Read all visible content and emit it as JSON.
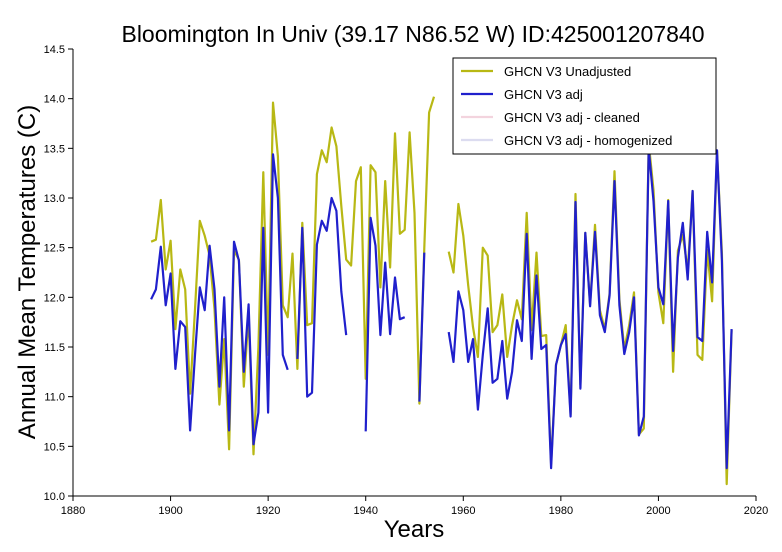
{
  "chart_data": {
    "type": "line",
    "title": "Bloomington In Univ (39.17 N86.52 W) ID:425001207840",
    "xlabel": "Years",
    "ylabel": "Annual Mean Temperatures (C)",
    "xlim": [
      1880,
      2020
    ],
    "ylim": [
      10.0,
      14.5
    ],
    "x_ticks": [
      "1880",
      "1900",
      "1920",
      "1940",
      "1960",
      "1980",
      "2000",
      "2020"
    ],
    "y_ticks": [
      "10.0",
      "10.5",
      "11.0",
      "11.5",
      "12.0",
      "12.5",
      "13.0",
      "13.5",
      "14.0",
      "14.5"
    ],
    "legend_position": "top-right",
    "grid": false,
    "series": [
      {
        "name": "GHCN V3 Unadjusted",
        "color": "#b8b814",
        "points": [
          [
            1896,
            12.56
          ],
          [
            1897,
            12.58
          ],
          [
            1898,
            12.98
          ],
          [
            1899,
            12.28
          ],
          [
            1900,
            12.57
          ],
          [
            1901,
            11.68
          ],
          [
            1902,
            12.28
          ],
          [
            1903,
            12.08
          ],
          [
            1904,
            11.03
          ],
          [
            1905,
            11.88
          ],
          [
            1906,
            12.77
          ],
          [
            1907,
            12.62
          ],
          [
            1908,
            12.42
          ],
          [
            1909,
            11.88
          ],
          [
            1910,
            10.92
          ],
          [
            1911,
            11.58
          ],
          [
            1912,
            10.47
          ],
          [
            1913,
            12.47
          ],
          [
            1914,
            12.38
          ],
          [
            1915,
            11.1
          ],
          [
            1916,
            11.82
          ],
          [
            1917,
            10.42
          ],
          [
            1918,
            11.5
          ],
          [
            1919,
            13.26
          ],
          [
            1920,
            11.42
          ],
          [
            1921,
            13.96
          ],
          [
            1922,
            13.42
          ],
          [
            1923,
            11.92
          ],
          [
            1924,
            11.8
          ],
          [
            1925,
            12.44
          ],
          [
            1926,
            11.28
          ],
          [
            1927,
            12.75
          ],
          [
            1928,
            11.72
          ],
          [
            1929,
            11.74
          ],
          [
            1930,
            13.24
          ],
          [
            1931,
            13.48
          ],
          [
            1932,
            13.36
          ],
          [
            1933,
            13.71
          ],
          [
            1934,
            13.52
          ],
          [
            1935,
            12.92
          ],
          [
            1936,
            12.38
          ],
          [
            1937,
            12.32
          ],
          [
            1938,
            13.17
          ],
          [
            1939,
            13.31
          ],
          [
            1940,
            11.18
          ],
          [
            1941,
            13.33
          ],
          [
            1942,
            13.26
          ],
          [
            1943,
            12.1
          ],
          [
            1944,
            13.17
          ],
          [
            1945,
            12.3
          ],
          [
            1946,
            13.65
          ],
          [
            1947,
            12.64
          ],
          [
            1948,
            12.68
          ],
          [
            1949,
            13.66
          ],
          [
            1950,
            12.85
          ],
          [
            1951,
            10.93
          ],
          [
            1952,
            12.5
          ],
          [
            1953,
            13.86
          ],
          [
            1954,
            14.02
          ],
          null,
          [
            1957,
            12.46
          ],
          [
            1958,
            12.25
          ],
          [
            1959,
            12.94
          ],
          [
            1960,
            12.62
          ],
          [
            1961,
            12.12
          ],
          [
            1962,
            11.7
          ],
          [
            1963,
            11.4
          ],
          [
            1964,
            12.5
          ],
          [
            1965,
            12.42
          ],
          [
            1966,
            11.65
          ],
          [
            1967,
            11.72
          ],
          [
            1968,
            12.03
          ],
          [
            1969,
            11.4
          ],
          [
            1970,
            11.72
          ],
          [
            1971,
            11.97
          ],
          [
            1972,
            11.78
          ],
          [
            1973,
            12.85
          ],
          [
            1974,
            11.67
          ],
          [
            1975,
            12.45
          ],
          [
            1976,
            11.61
          ],
          [
            1977,
            11.62
          ],
          [
            1978,
            10.32
          ],
          [
            1979,
            11.32
          ],
          [
            1980,
            11.52
          ],
          [
            1981,
            11.72
          ],
          [
            1982,
            10.82
          ],
          [
            1983,
            13.04
          ],
          [
            1984,
            11.12
          ],
          [
            1985,
            12.65
          ],
          [
            1986,
            11.93
          ],
          [
            1987,
            12.73
          ],
          [
            1988,
            11.87
          ],
          [
            1989,
            11.68
          ],
          [
            1990,
            12.04
          ],
          [
            1991,
            13.27
          ],
          [
            1992,
            11.98
          ],
          [
            1993,
            11.48
          ],
          [
            1994,
            11.72
          ],
          [
            1995,
            12.05
          ],
          [
            1996,
            10.62
          ],
          [
            1997,
            10.68
          ],
          [
            1998,
            13.56
          ],
          [
            1999,
            13.08
          ],
          [
            2000,
            12.05
          ],
          [
            2001,
            11.74
          ],
          [
            2002,
            12.98
          ],
          [
            2003,
            11.25
          ],
          [
            2004,
            12.47
          ],
          [
            2005,
            12.63
          ],
          [
            2006,
            12.27
          ],
          [
            2007,
            13.07
          ],
          [
            2008,
            11.42
          ],
          [
            2009,
            11.37
          ],
          [
            2010,
            12.48
          ],
          [
            2011,
            11.96
          ],
          [
            2012,
            13.48
          ],
          [
            2013,
            12.45
          ],
          [
            2014,
            10.12
          ],
          [
            2015,
            11.67
          ]
        ]
      },
      {
        "name": "GHCN V3 adj",
        "color": "#2020cc",
        "points": [
          [
            1896,
            11.98
          ],
          [
            1897,
            12.08
          ],
          [
            1898,
            12.51
          ],
          [
            1899,
            11.92
          ],
          [
            1900,
            12.24
          ],
          [
            1901,
            11.28
          ],
          [
            1902,
            11.76
          ],
          [
            1903,
            11.7
          ],
          [
            1904,
            10.66
          ],
          [
            1905,
            11.42
          ],
          [
            1906,
            12.1
          ],
          [
            1907,
            11.87
          ],
          [
            1908,
            12.52
          ],
          [
            1909,
            12.08
          ],
          [
            1910,
            11.1
          ],
          [
            1911,
            12.0
          ],
          [
            1912,
            10.66
          ],
          [
            1913,
            12.56
          ],
          [
            1914,
            12.37
          ],
          [
            1915,
            11.25
          ],
          [
            1916,
            11.93
          ],
          [
            1917,
            10.52
          ],
          [
            1918,
            10.84
          ],
          [
            1919,
            12.7
          ],
          [
            1920,
            10.84
          ],
          [
            1921,
            13.44
          ],
          [
            1922,
            13.0
          ],
          [
            1923,
            11.42
          ],
          [
            1924,
            11.27
          ],
          null,
          [
            1926,
            11.38
          ],
          [
            1927,
            12.7
          ],
          [
            1928,
            11.0
          ],
          [
            1929,
            11.04
          ],
          [
            1930,
            12.53
          ],
          [
            1931,
            12.77
          ],
          [
            1932,
            12.67
          ],
          [
            1933,
            13.0
          ],
          [
            1934,
            12.87
          ],
          [
            1935,
            12.06
          ],
          [
            1936,
            11.62
          ],
          null,
          [
            1940,
            10.65
          ],
          [
            1941,
            12.8
          ],
          [
            1942,
            12.52
          ],
          [
            1943,
            11.62
          ],
          [
            1944,
            12.35
          ],
          [
            1945,
            11.63
          ],
          [
            1946,
            12.2
          ],
          [
            1947,
            11.78
          ],
          [
            1948,
            11.8
          ],
          null,
          [
            1951,
            10.95
          ],
          [
            1952,
            12.45
          ],
          null,
          [
            1957,
            11.65
          ],
          [
            1958,
            11.35
          ],
          [
            1959,
            12.06
          ],
          [
            1960,
            11.87
          ],
          [
            1961,
            11.35
          ],
          [
            1962,
            11.58
          ],
          [
            1963,
            10.87
          ],
          [
            1964,
            11.42
          ],
          [
            1965,
            11.89
          ],
          [
            1966,
            11.14
          ],
          [
            1967,
            11.18
          ],
          [
            1968,
            11.56
          ],
          [
            1969,
            10.98
          ],
          [
            1970,
            11.25
          ],
          [
            1971,
            11.77
          ],
          [
            1972,
            11.56
          ],
          [
            1973,
            12.64
          ],
          [
            1974,
            11.38
          ],
          [
            1975,
            12.22
          ],
          [
            1976,
            11.48
          ],
          [
            1977,
            11.52
          ],
          [
            1978,
            10.28
          ],
          [
            1979,
            11.32
          ],
          [
            1980,
            11.52
          ],
          [
            1981,
            11.63
          ],
          [
            1982,
            10.8
          ],
          [
            1983,
            12.96
          ],
          [
            1984,
            11.08
          ],
          [
            1985,
            12.65
          ],
          [
            1986,
            11.91
          ],
          [
            1987,
            12.66
          ],
          [
            1988,
            11.82
          ],
          [
            1989,
            11.65
          ],
          [
            1990,
            12.02
          ],
          [
            1991,
            13.17
          ],
          [
            1992,
            11.92
          ],
          [
            1993,
            11.43
          ],
          [
            1994,
            11.65
          ],
          [
            1995,
            12.0
          ],
          [
            1996,
            10.61
          ],
          [
            1997,
            10.8
          ],
          [
            1998,
            13.5
          ],
          [
            1999,
            12.97
          ],
          [
            2000,
            12.1
          ],
          [
            2001,
            11.93
          ],
          [
            2002,
            12.97
          ],
          [
            2003,
            11.46
          ],
          [
            2004,
            12.4
          ],
          [
            2005,
            12.75
          ],
          [
            2006,
            12.18
          ],
          [
            2007,
            13.07
          ],
          [
            2008,
            11.6
          ],
          [
            2009,
            11.56
          ],
          [
            2010,
            12.66
          ],
          [
            2011,
            12.15
          ],
          [
            2012,
            13.48
          ],
          [
            2013,
            12.37
          ],
          [
            2014,
            10.28
          ],
          [
            2015,
            11.68
          ]
        ]
      },
      {
        "name": "GHCN V3 adj - cleaned",
        "color": "#f3d4de",
        "points": []
      },
      {
        "name": "GHCN V3 adj - homogenized",
        "color": "#dcdcf0",
        "points": []
      }
    ]
  }
}
